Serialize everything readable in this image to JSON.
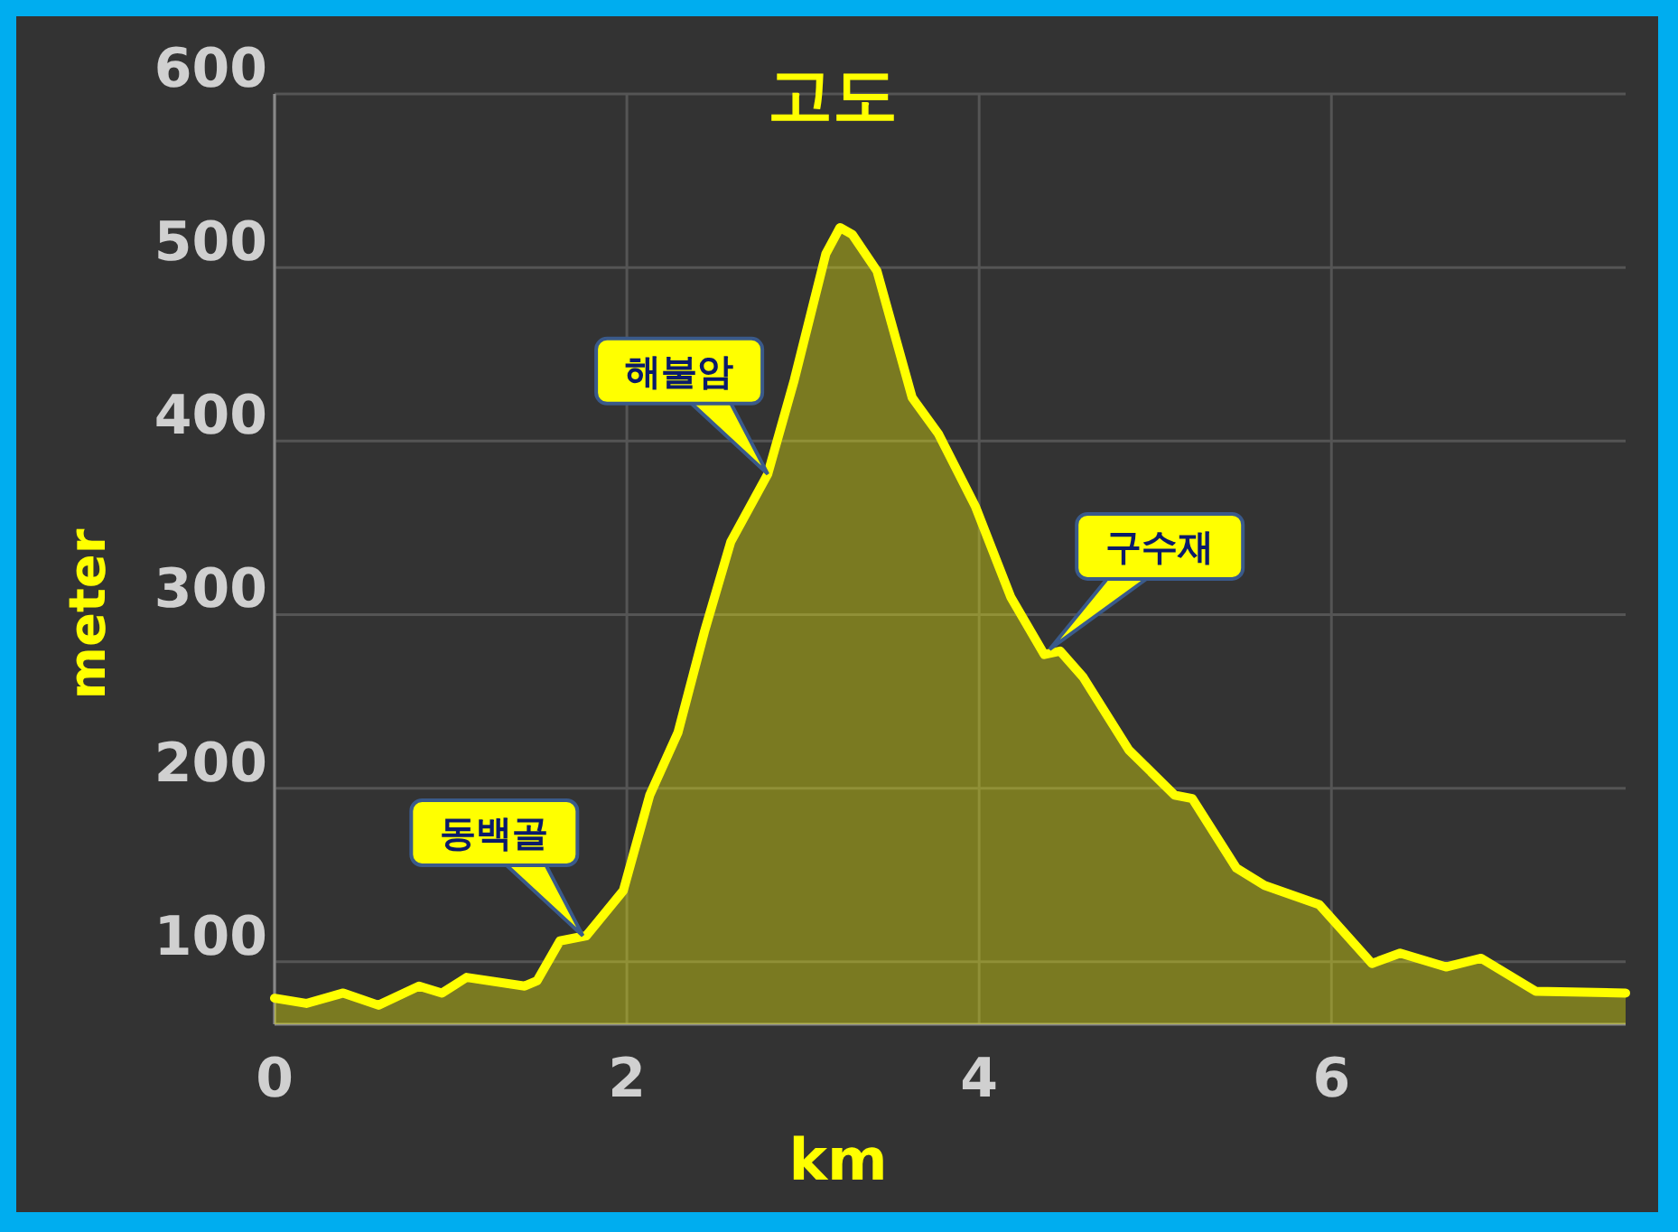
{
  "chart_data": {
    "type": "area",
    "title": "고도",
    "xlabel": "km",
    "ylabel": "meter",
    "x": [
      0,
      0.18,
      0.39,
      0.59,
      0.82,
      0.95,
      1.09,
      1.42,
      1.49,
      1.62,
      1.77,
      1.98,
      2.13,
      2.29,
      2.44,
      2.59,
      2.8,
      2.95,
      3.13,
      3.21,
      3.28,
      3.42,
      3.62,
      3.77,
      3.98,
      4.18,
      4.37,
      4.46,
      4.59,
      4.85,
      5.11,
      5.21,
      5.46,
      5.62,
      5.93,
      6.23,
      6.39,
      6.65,
      6.85,
      7.16,
      7.67
    ],
    "series": [
      {
        "color": "#ffff00",
        "values": [
          79,
          76,
          82,
          75,
          86,
          82,
          91,
          86,
          89,
          112,
          115,
          141,
          196,
          232,
          290,
          342,
          381,
          435,
          508,
          523,
          519,
          498,
          425,
          404,
          362,
          310,
          277,
          279,
          264,
          222,
          196,
          194,
          154,
          144,
          133,
          99,
          105,
          97,
          102,
          83,
          82
        ]
      }
    ],
    "xlim": [
      0,
      7.67
    ],
    "ylim": [
      64,
      600
    ],
    "xticks": [
      0,
      2,
      4,
      6
    ],
    "yticks": [
      100,
      200,
      300,
      400,
      500,
      600
    ],
    "grid": true,
    "annotations": [
      {
        "text": "동백골",
        "x": 1.75,
        "y": 115
      },
      {
        "text": "해불암",
        "x": 2.8,
        "y": 381
      },
      {
        "text": "구수재",
        "x": 4.4,
        "y": 280
      }
    ]
  }
}
